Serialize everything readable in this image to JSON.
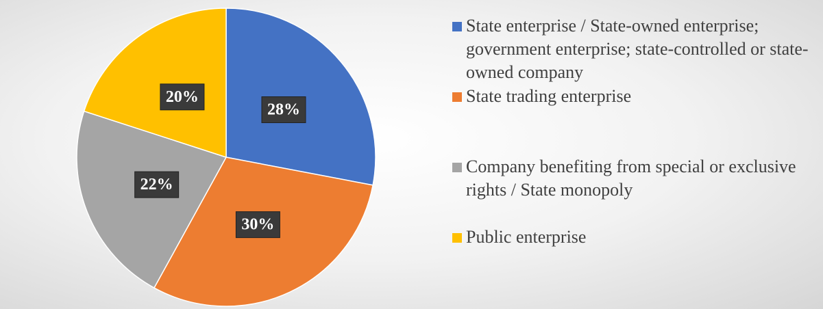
{
  "chart_data": {
    "type": "pie",
    "categories": [
      "State enterprise / State-owned enterprise; government enterprise; state-controlled or state-owned company",
      "State trading enterprise",
      "Company benefiting from special or exclusive rights / State monopoly",
      "Public enterprise"
    ],
    "values": [
      28,
      30,
      22,
      20
    ],
    "value_labels": [
      "28%",
      "30%",
      "22%",
      "20%"
    ],
    "colors": [
      "#4472c4",
      "#ed7d31",
      "#a5a5a5",
      "#ffc000"
    ],
    "legend": "right"
  }
}
